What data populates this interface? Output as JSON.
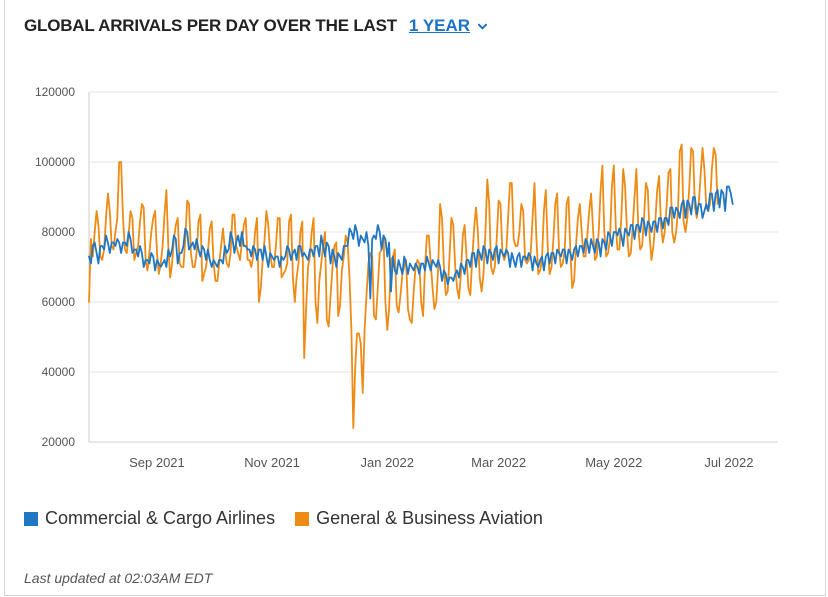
{
  "header": {
    "title": "GLOBAL ARRIVALS PER DAY OVER THE LAST",
    "range_label": "1 YEAR"
  },
  "legend": {
    "items": [
      {
        "label": "Commercial & Cargo Airlines",
        "color": "#1f77c4"
      },
      {
        "label": "General & Business Aviation",
        "color": "#ee8b14"
      }
    ]
  },
  "footer": {
    "last_updated": "Last updated at 02:03AM EDT"
  },
  "chart_data": {
    "type": "line",
    "title": "GLOBAL ARRIVALS PER DAY OVER THE LAST 1 YEAR",
    "xlabel": "",
    "ylabel": "",
    "ylim": [
      20000,
      120000
    ],
    "yticks": [
      20000,
      40000,
      60000,
      80000,
      100000,
      120000
    ],
    "ytick_labels": [
      "20000",
      "40000",
      "60000",
      "80000",
      "100000",
      "120000"
    ],
    "xticks": [
      {
        "label": "Sep 2021",
        "index": 36
      },
      {
        "label": "Nov 2021",
        "index": 97
      },
      {
        "label": "Jan 2022",
        "index": 158
      },
      {
        "label": "Mar 2022",
        "index": 217
      },
      {
        "label": "May 2022",
        "index": 278
      },
      {
        "label": "Jul 2022",
        "index": 339
      }
    ],
    "x_index_range": [
      0,
      365
    ],
    "grid": "horizontal",
    "legend_position": "bottom",
    "series": [
      {
        "name": "Commercial & Cargo Airlines",
        "color": "#1f77c4",
        "values": [
          73000,
          71000,
          76000,
          77000,
          74000,
          71000,
          76000,
          76000,
          75000,
          79000,
          77000,
          74000,
          77000,
          77000,
          76000,
          78000,
          77000,
          74000,
          77000,
          77000,
          76000,
          80000,
          78000,
          74000,
          75000,
          75000,
          73000,
          76000,
          74000,
          70000,
          72000,
          72000,
          71000,
          74000,
          73000,
          69000,
          72000,
          71000,
          70000,
          71000,
          72000,
          70000,
          75000,
          73000,
          75000,
          79000,
          78000,
          71000,
          74000,
          74000,
          76000,
          81000,
          80000,
          75000,
          76000,
          77000,
          75000,
          78000,
          75000,
          73000,
          76000,
          75000,
          72000,
          75000,
          72000,
          70000,
          72000,
          71000,
          70000,
          72000,
          72000,
          71000,
          76000,
          74000,
          75000,
          80000,
          78000,
          74000,
          77000,
          79000,
          76000,
          80000,
          76000,
          76000,
          75000,
          75000,
          73000,
          76000,
          75000,
          72000,
          75000,
          75000,
          72000,
          76000,
          73000,
          70000,
          74000,
          73000,
          72000,
          73000,
          73000,
          70000,
          73000,
          72000,
          73000,
          76000,
          75000,
          72000,
          74000,
          75000,
          72000,
          76000,
          76000,
          73000,
          74000,
          73000,
          72000,
          75000,
          75000,
          73000,
          76000,
          76000,
          73000,
          79000,
          76000,
          73000,
          77000,
          76000,
          71000,
          75000,
          73000,
          70000,
          74000,
          73000,
          72000,
          76000,
          76000,
          76000,
          81000,
          80000,
          78000,
          82000,
          80000,
          76000,
          79000,
          78000,
          77000,
          80000,
          76000,
          61000,
          78000,
          79000,
          78000,
          82000,
          80000,
          75000,
          79000,
          78000,
          73000,
          77000,
          63000,
          73000,
          69000,
          68000,
          72000,
          70000,
          68000,
          73000,
          71000,
          68000,
          71000,
          70000,
          69000,
          71000,
          70000,
          68000,
          71000,
          71000,
          69000,
          73000,
          71000,
          69000,
          72000,
          71000,
          70000,
          72000,
          70000,
          66000,
          69000,
          68000,
          65000,
          67000,
          67000,
          66000,
          68000,
          69000,
          67000,
          71000,
          70000,
          68000,
          72000,
          72000,
          70000,
          74000,
          74000,
          70000,
          75000,
          74000,
          72000,
          76000,
          75000,
          71000,
          75000,
          74000,
          72000,
          75000,
          76000,
          71000,
          75000,
          74000,
          73000,
          75000,
          74000,
          70000,
          74000,
          72000,
          70000,
          73000,
          74000,
          70000,
          73000,
          73000,
          72000,
          74000,
          73000,
          69000,
          73000,
          71000,
          70000,
          72000,
          73000,
          69000,
          73000,
          74000,
          71000,
          74000,
          74000,
          71000,
          75000,
          74000,
          73000,
          75000,
          75000,
          71000,
          75000,
          74000,
          72000,
          75000,
          76000,
          73000,
          76000,
          76000,
          74000,
          78000,
          77000,
          74000,
          78000,
          76000,
          74000,
          78000,
          77000,
          73000,
          78000,
          77000,
          75000,
          80000,
          79000,
          76000,
          80000,
          80000,
          79000,
          81000,
          79000,
          76000,
          81000,
          80000,
          79000,
          82000,
          82000,
          78000,
          82000,
          82000,
          80000,
          84000,
          83000,
          79000,
          83000,
          82000,
          80000,
          83000,
          83000,
          80000,
          84000,
          84000,
          81000,
          84000,
          84000,
          82000,
          87000,
          87000,
          84000,
          87000,
          86000,
          84000,
          88000,
          89000,
          84000,
          89000,
          88000,
          85000,
          90000,
          90000,
          85000,
          88000,
          88000,
          84000,
          86000,
          88000,
          86000,
          91000,
          91000,
          86000,
          91000,
          92000,
          87000,
          92000,
          91000,
          86000,
          93000,
          93000,
          91000,
          88000
        ]
      },
      {
        "name": "General & Business Aviation",
        "color": "#ee8b14",
        "values": [
          60000,
          78000,
          73000,
          80000,
          86000,
          82000,
          73000,
          72000,
          75000,
          84000,
          91000,
          86000,
          76000,
          75000,
          80000,
          84000,
          100000,
          100000,
          84000,
          75000,
          74000,
          79000,
          86000,
          84000,
          72000,
          74000,
          76000,
          83000,
          88000,
          87000,
          72000,
          69000,
          74000,
          80000,
          84000,
          86000,
          74000,
          68000,
          71000,
          76000,
          85000,
          92000,
          76000,
          67000,
          71000,
          78000,
          82000,
          84000,
          71000,
          70000,
          70000,
          78000,
          89000,
          88000,
          74000,
          70000,
          70000,
          74000,
          83000,
          85000,
          66000,
          68000,
          70000,
          74000,
          81000,
          83000,
          71000,
          66000,
          66000,
          71000,
          76000,
          81000,
          75000,
          71000,
          70000,
          74000,
          85000,
          85000,
          76000,
          74000,
          72000,
          77000,
          82000,
          84000,
          72000,
          72000,
          70000,
          73000,
          80000,
          84000,
          60000,
          64000,
          72000,
          78000,
          86000,
          82000,
          74000,
          70000,
          70000,
          76000,
          84000,
          84000,
          67000,
          68000,
          69000,
          71000,
          83000,
          85000,
          67000,
          60000,
          67000,
          71000,
          80000,
          83000,
          44000,
          58000,
          70000,
          73000,
          80000,
          84000,
          60000,
          54000,
          66000,
          71000,
          76000,
          80000,
          55000,
          53000,
          62000,
          70000,
          76000,
          77000,
          56000,
          59000,
          69000,
          73000,
          79000,
          77000,
          67000,
          52000,
          24000,
          41000,
          51000,
          51000,
          48000,
          34000,
          52000,
          62000,
          71000,
          74000,
          73000,
          56000,
          55000,
          64000,
          74000,
          75000,
          79000,
          60000,
          52000,
          58000,
          72000,
          73000,
          75000,
          59000,
          57000,
          62000,
          68000,
          70000,
          72000,
          58000,
          55000,
          54000,
          63000,
          70000,
          72000,
          71000,
          60000,
          56000,
          70000,
          79000,
          79000,
          71000,
          64000,
          58000,
          60000,
          70000,
          88000,
          84000,
          70000,
          62000,
          63000,
          73000,
          84000,
          82000,
          70000,
          64000,
          61000,
          68000,
          79000,
          82000,
          73000,
          64000,
          62000,
          72000,
          81000,
          87000,
          80000,
          67000,
          63000,
          68000,
          80000,
          95000,
          88000,
          70000,
          68000,
          70000,
          78000,
          89000,
          88000,
          74000,
          72000,
          74000,
          84000,
          94000,
          94000,
          78000,
          76000,
          76000,
          80000,
          88000,
          86000,
          72000,
          71000,
          72000,
          74000,
          84000,
          94000,
          78000,
          68000,
          69000,
          72000,
          86000,
          92000,
          76000,
          68000,
          70000,
          78000,
          88000,
          91000,
          75000,
          70000,
          71000,
          75000,
          88000,
          90000,
          74000,
          64000,
          66000,
          76000,
          84000,
          88000,
          80000,
          73000,
          73000,
          79000,
          86000,
          91000,
          81000,
          72000,
          73000,
          80000,
          92000,
          99000,
          80000,
          73000,
          74000,
          78000,
          93000,
          99000,
          82000,
          75000,
          75000,
          84000,
          98000,
          93000,
          80000,
          73000,
          74000,
          81000,
          90000,
          98000,
          81000,
          75000,
          76000,
          84000,
          94000,
          92000,
          79000,
          72000,
          76000,
          83000,
          92000,
          96000,
          82000,
          77000,
          80000,
          87000,
          97000,
          98000,
          80000,
          77000,
          80000,
          86000,
          103000,
          105000,
          83000,
          80000,
          84000,
          93000,
          104000,
          103000,
          87000,
          84000,
          88000,
          96000,
          104000,
          98000,
          87000,
          86000,
          88000,
          98000,
          104000,
          102000,
          88000
        ]
      }
    ]
  }
}
